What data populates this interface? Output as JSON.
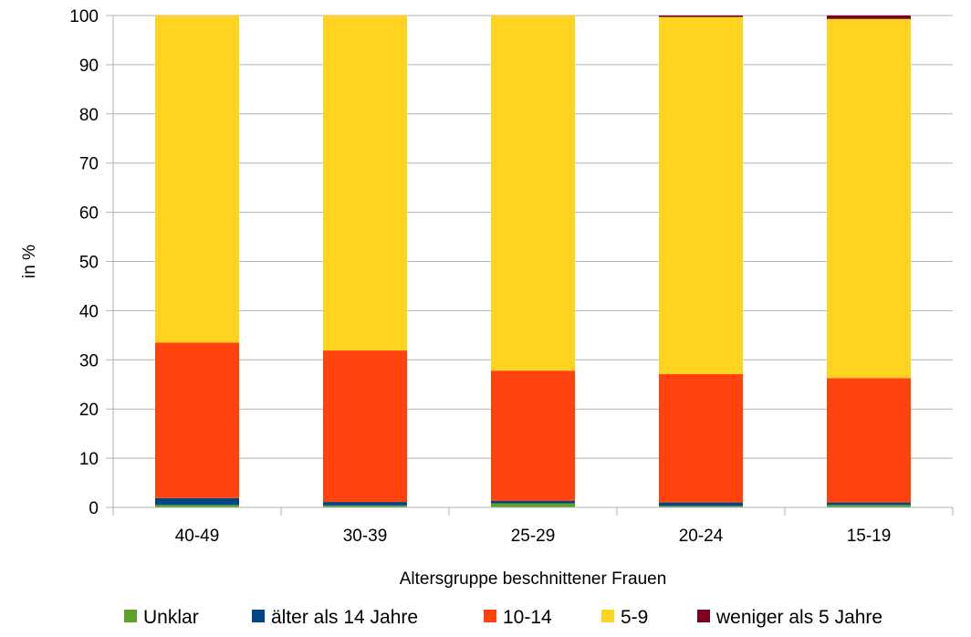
{
  "chart_data": {
    "type": "bar",
    "stacked": true,
    "title": "",
    "xlabel": "Altersgruppe beschnittener Frauen",
    "ylabel": "in %",
    "ylim": [
      0,
      100
    ],
    "yticks": [
      0,
      10,
      20,
      30,
      40,
      50,
      60,
      70,
      80,
      90,
      100
    ],
    "grid": "horizontal",
    "legend_position": "bottom",
    "categories": [
      "40-49",
      "30-39",
      "25-29",
      "20-24",
      "15-19"
    ],
    "series": [
      {
        "name": "Unklar",
        "color": "#5ea028",
        "values": [
          0.5,
          0.4,
          0.8,
          0.3,
          0.5
        ]
      },
      {
        "name": "älter als 14 Jahre",
        "color": "#004586",
        "values": [
          1.4,
          0.7,
          0.5,
          0.7,
          0.5
        ]
      },
      {
        "name": "10-14",
        "color": "#ff420e",
        "values": [
          31.6,
          30.8,
          26.5,
          26.1,
          25.3
        ]
      },
      {
        "name": "5-9",
        "color": "#ffd320",
        "values": [
          66.5,
          68.1,
          72.2,
          72.6,
          73.0
        ]
      },
      {
        "name": "weniger als 5 Jahre",
        "color": "#7e0021",
        "values": [
          0.0,
          0.0,
          0.0,
          0.3,
          0.7
        ]
      }
    ]
  }
}
